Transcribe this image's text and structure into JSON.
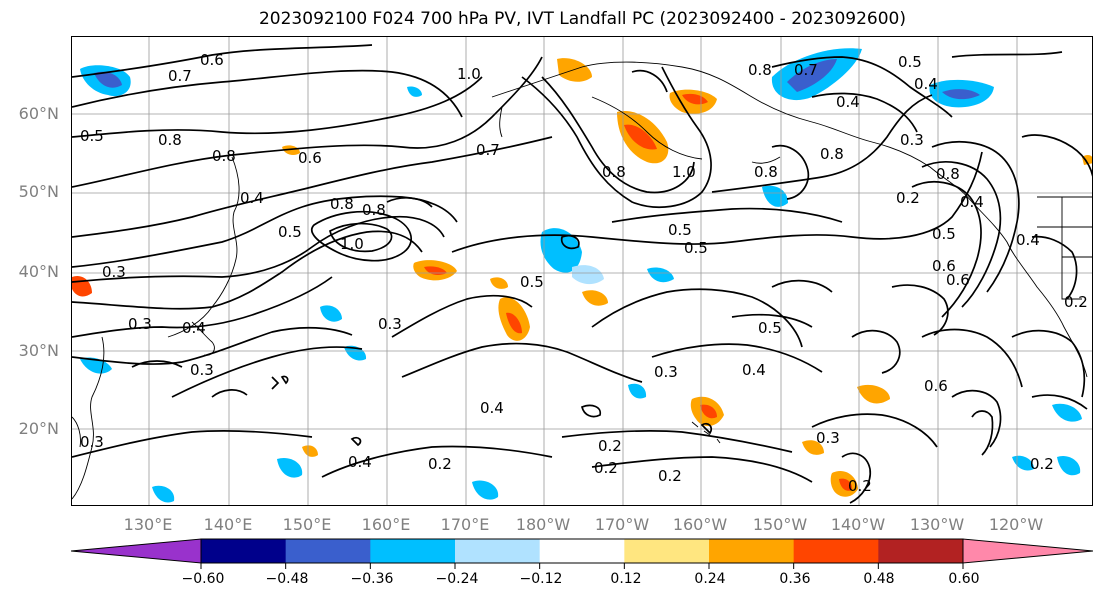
{
  "title": "2023092100 F024 700 hPa PV, IVT Landfall PC (2023092400 - 2023092600)",
  "lat_labels": [
    "60°N",
    "50°N",
    "40°N",
    "30°N",
    "20°N"
  ],
  "lon_labels": [
    "130°E",
    "140°E",
    "150°E",
    "160°E",
    "170°E",
    "180°W",
    "170°W",
    "160°W",
    "150°W",
    "140°W",
    "130°W",
    "120°W"
  ],
  "colorbar": {
    "ticks": [
      "−0.60",
      "−0.48",
      "−0.36",
      "−0.24",
      "−0.12",
      "0.12",
      "0.24",
      "0.36",
      "0.48",
      "0.60"
    ],
    "colors": [
      "#9932cc",
      "#00008b",
      "#3a5fcd",
      "#00bfff",
      "#b0e2ff",
      "#ffffff",
      "#ffe680",
      "#ffa500",
      "#ff4500",
      "#b22222",
      "#ff88aa"
    ]
  },
  "contour_labels": [
    "0.6",
    "0.7",
    "0.8",
    "0.5",
    "0.8",
    "0.8",
    "0.6",
    "0.4",
    "0.5",
    "0.8",
    "1.0",
    "0.3",
    "0.3",
    "0.4",
    "0.3",
    "0.3",
    "1.0",
    "0.7",
    "0.8",
    "1.0",
    "0.5",
    "0.5",
    "0.5",
    "0.3",
    "0.4",
    "0.2",
    "0.4",
    "0.2",
    "0.8",
    "0.7",
    "0.4",
    "0.8",
    "0.8",
    "0.4",
    "0.5",
    "0.4",
    "0.3",
    "0.2",
    "0.6",
    "0.5",
    "0.2",
    "0.5",
    "0.2",
    "0.4",
    "0.6",
    "0.3",
    "0.2",
    "0.2",
    "0.3",
    "0.2",
    "0.6",
    "0.4",
    "0.8"
  ]
}
